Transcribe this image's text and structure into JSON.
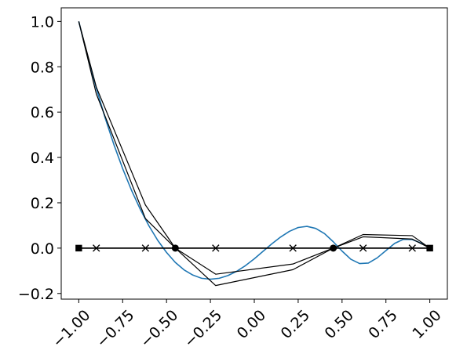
{
  "chart_data": {
    "type": "line",
    "title": "",
    "xlabel": "",
    "ylabel": "",
    "xlim": [
      -1.1,
      1.1
    ],
    "ylim": [
      -0.225,
      1.06
    ],
    "grid": false,
    "legend": "none",
    "x_ticks": [
      {
        "value": -1.0,
        "label": "−1.00"
      },
      {
        "value": -0.75,
        "label": "−0.75"
      },
      {
        "value": -0.5,
        "label": "−0.50"
      },
      {
        "value": -0.25,
        "label": "−0.25"
      },
      {
        "value": 0.0,
        "label": "0.00"
      },
      {
        "value": 0.25,
        "label": "0.25"
      },
      {
        "value": 0.5,
        "label": "0.50"
      },
      {
        "value": 0.75,
        "label": "0.75"
      },
      {
        "value": 1.0,
        "label": "1.00"
      }
    ],
    "y_ticks": [
      {
        "value": -0.2,
        "label": "−0.2"
      },
      {
        "value": 0.0,
        "label": "0.0"
      },
      {
        "value": 0.2,
        "label": "0.2"
      },
      {
        "value": 0.4,
        "label": "0.4"
      },
      {
        "value": 0.6,
        "label": "0.6"
      },
      {
        "value": 0.8,
        "label": "0.8"
      },
      {
        "value": 1.0,
        "label": "1.0"
      }
    ],
    "series": [
      {
        "kind": "curve",
        "color": "#1f77b4",
        "x": [
          -1.0,
          -0.95,
          -0.9,
          -0.85,
          -0.8,
          -0.75,
          -0.7,
          -0.65,
          -0.6,
          -0.55,
          -0.5,
          -0.45,
          -0.4,
          -0.35,
          -0.3,
          -0.25,
          -0.2,
          -0.15,
          -0.1,
          -0.05,
          0.0,
          0.05,
          0.1,
          0.15,
          0.2,
          0.25,
          0.3,
          0.35,
          0.4,
          0.45,
          0.5,
          0.55,
          0.6,
          0.65,
          0.7,
          0.75,
          0.8,
          0.85,
          0.9,
          0.95,
          1.0
        ],
        "y": [
          1.0,
          0.846,
          0.705,
          0.575,
          0.457,
          0.351,
          0.256,
          0.172,
          0.098,
          0.034,
          -0.019,
          -0.063,
          -0.096,
          -0.119,
          -0.133,
          -0.137,
          -0.133,
          -0.121,
          -0.102,
          -0.077,
          -0.047,
          -0.014,
          0.019,
          0.049,
          0.074,
          0.091,
          0.096,
          0.087,
          0.064,
          0.028,
          -0.013,
          -0.049,
          -0.068,
          -0.066,
          -0.043,
          -0.011,
          0.021,
          0.039,
          0.038,
          0.022,
          0.0
        ]
      },
      {
        "kind": "line",
        "color": "#000000",
        "x": [
          -1.0,
          -0.9,
          -0.62,
          -0.45,
          -0.22,
          0.22,
          0.45,
          0.62,
          0.9,
          1.0
        ],
        "y": [
          1.0,
          0.71,
          0.19,
          0.0,
          -0.115,
          -0.07,
          0.0,
          0.06,
          0.055,
          0.0
        ]
      },
      {
        "kind": "line",
        "color": "#000000",
        "x": [
          -1.0,
          -0.9,
          -0.62,
          -0.45,
          -0.22,
          0.22,
          0.45,
          0.62,
          0.9,
          1.0
        ],
        "y": [
          1.0,
          0.68,
          0.13,
          0.0,
          -0.165,
          -0.095,
          0.0,
          0.05,
          0.04,
          0.0
        ]
      },
      {
        "kind": "line",
        "color": "#000000",
        "x": [
          -1.0,
          1.0
        ],
        "y": [
          0.0,
          0.0
        ]
      },
      {
        "kind": "markers",
        "marker": "x",
        "color": "#000000",
        "x": [
          -0.9,
          -0.62,
          -0.22,
          0.22,
          0.62,
          0.9
        ],
        "y": [
          0.0,
          0.0,
          0.0,
          0.0,
          0.0,
          0.0
        ]
      },
      {
        "kind": "markers",
        "marker": "circle",
        "color": "#000000",
        "x": [
          -0.45,
          0.45
        ],
        "y": [
          0.0,
          0.0
        ]
      },
      {
        "kind": "markers",
        "marker": "square",
        "color": "#000000",
        "x": [
          -1.0,
          1.0
        ],
        "y": [
          0.0,
          0.0
        ]
      }
    ]
  }
}
